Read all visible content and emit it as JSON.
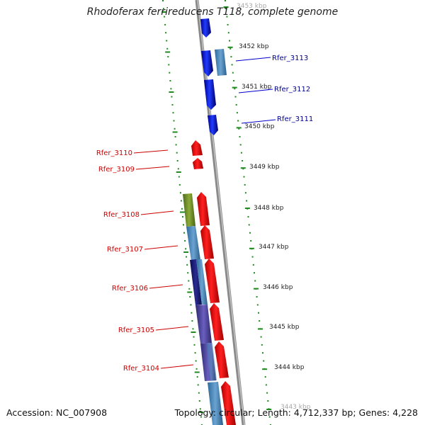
{
  "title": "Rhodoferax ferrireducens T118, complete genome",
  "accession": "Accession: NC_007908",
  "summary": "Topology: circular; Length: 4,712,337 bp; Genes: 4,228",
  "colors": {
    "forward_gene": "#0000ff",
    "reverse_gene": "#ff0000",
    "backbone": "#888888",
    "tick": "#1f8a1f",
    "forward_label": "#00008b",
    "reverse_label": "#cc0000",
    "cog_blue": "#4682b4",
    "cog_green": "#6b8e23",
    "cog_navy": "#191970",
    "cog_slate": "#483d8b"
  },
  "scale_labels": [
    "3453 kbp",
    "3452 kbp",
    "3451 kbp",
    "3450 kbp",
    "3449 kbp",
    "3448 kbp",
    "3447 kbp",
    "3446 kbp",
    "3445 kbp",
    "3444 kbp",
    "3443 kbp"
  ],
  "forward_genes": [
    "Rfer_3113",
    "Rfer_3112",
    "Rfer_3111"
  ],
  "reverse_genes": [
    "Rfer_3110",
    "Rfer_3109",
    "Rfer_3108",
    "Rfer_3107",
    "Rfer_3106",
    "Rfer_3105",
    "Rfer_3104"
  ]
}
